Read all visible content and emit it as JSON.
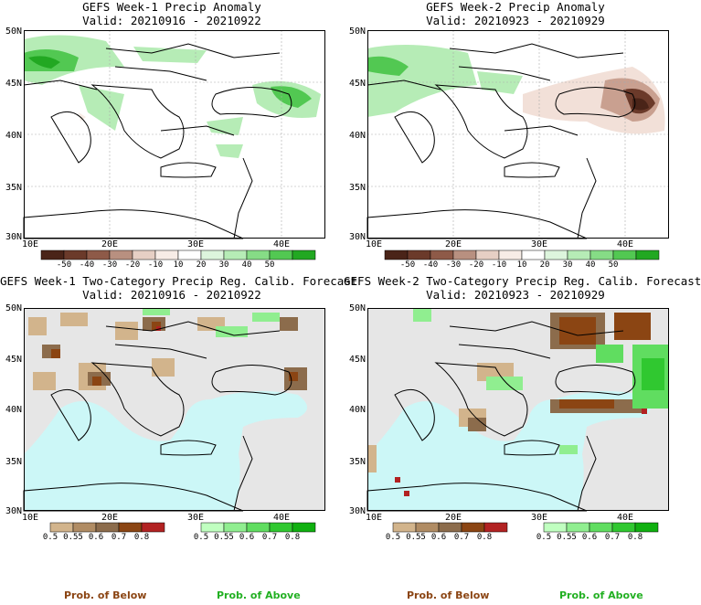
{
  "panels": [
    {
      "id": "tl",
      "title": "GEFS Week-1 Precip Anomaly",
      "valid": "Valid: 20210916 - 20210922",
      "kind": "anomaly",
      "lat_labels": [
        "50N",
        "45N",
        "40N",
        "35N",
        "30N"
      ],
      "lon_labels": [
        "10E",
        "20E",
        "30E",
        "40E"
      ]
    },
    {
      "id": "tr",
      "title": "GEFS Week-2 Precip Anomaly",
      "valid": "Valid: 20210923 - 20210929",
      "kind": "anomaly",
      "lat_labels": [
        "50N",
        "45N",
        "40N",
        "35N",
        "30N"
      ],
      "lon_labels": [
        "10E",
        "20E",
        "30E",
        "40E"
      ]
    },
    {
      "id": "bl",
      "title": "GEFS Week-1 Two-Category Precip Reg. Calib. Forecast",
      "valid": "Valid: 20210916 - 20210922",
      "kind": "category",
      "lat_labels": [
        "50N",
        "45N",
        "40N",
        "35N",
        "30N"
      ],
      "lon_labels": [
        "10E",
        "20E",
        "30E",
        "40E"
      ]
    },
    {
      "id": "br",
      "title": "GEFS Week-2 Two-Category Precip Reg. Calib. Forecast",
      "valid": "Valid: 20210923 - 20210929",
      "kind": "category",
      "lat_labels": [
        "50N",
        "45N",
        "40N",
        "35N",
        "30N"
      ],
      "lon_labels": [
        "10E",
        "20E",
        "30E",
        "40E"
      ]
    }
  ],
  "anomaly_colorbar": {
    "labels": [
      "-50",
      "-40",
      "-30",
      "-20",
      "-10",
      "10",
      "20",
      "30",
      "40",
      "50"
    ],
    "colors": [
      "#4a2418",
      "#6b3a2a",
      "#8e5a48",
      "#b89080",
      "#e6cfc4",
      "#f7ece6",
      "#ffffff",
      "#ddf5dd",
      "#b6ecb6",
      "#86dc86",
      "#52c852",
      "#22a822"
    ]
  },
  "below_colorbar": {
    "labels": [
      "0.5",
      "0.55",
      "0.6",
      "0.7",
      "0.8"
    ],
    "colors": [
      "#d2b48c",
      "#b08c64",
      "#8c6c4c",
      "#8b4513",
      "#b22222"
    ]
  },
  "above_colorbar": {
    "labels": [
      "0.5",
      "0.55",
      "0.6",
      "0.7",
      "0.8"
    ],
    "colors": [
      "#c0ffc0",
      "#90ee90",
      "#60dd60",
      "#30c830",
      "#10b010"
    ]
  },
  "prob_below_label": "Prob. of Below",
  "prob_above_label": "Prob. of Above",
  "colors": {
    "sea_category": "#ccf7f7",
    "land_gray": "#e6e6e6",
    "frame": "#000000"
  }
}
